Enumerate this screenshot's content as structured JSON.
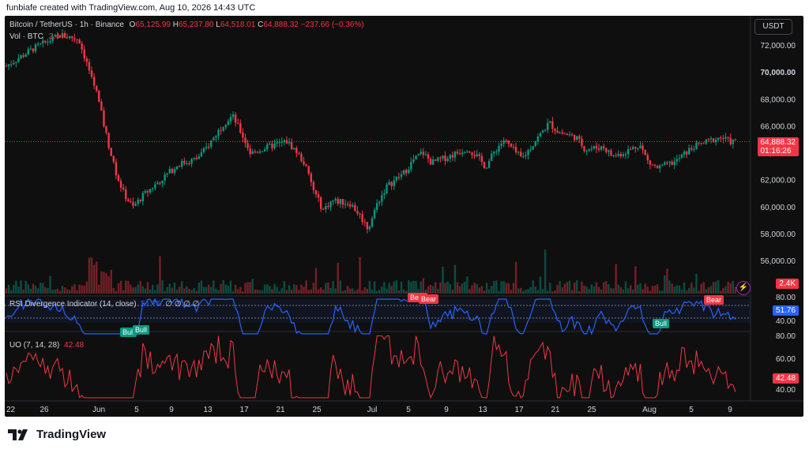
{
  "header": {
    "text": "funbiafe created with TradingView.com, Aug 10, 2026 14:43 UTC"
  },
  "legend": {
    "symbol": "Bitcoin / TetherUS · 1h · Binance",
    "o_label": "O",
    "o": "65,125.99",
    "h_label": "H",
    "h": "65,237.80",
    "l_label": "L",
    "l": "64,518.01",
    "c_label": "C",
    "c": "64,888.32",
    "chg": "−237.66 (−0.36%)",
    "vol_label": "Vol · BTC",
    "vol": "2.4 K"
  },
  "currency_button": "USDT",
  "price_tag": {
    "price": "64,888.32",
    "countdown": "01:16:26"
  },
  "volume_tag": "2.4K",
  "rsi": {
    "label": "RSI Divergence Indicator (14, close)",
    "value": "51.76",
    "nulls": "∅ ∅ ∅ ∅",
    "signals": [
      {
        "type": "Bear",
        "text": "Bear"
      },
      {
        "type": "Bear",
        "text": "Bear"
      },
      {
        "type": "Bear",
        "text": "Bear"
      },
      {
        "type": "Bull",
        "text": "Bull"
      },
      {
        "type": "Bull",
        "text": "Bull"
      },
      {
        "type": "Bull",
        "text": "Bull"
      }
    ]
  },
  "uo": {
    "label": "UO (7, 14, 28)",
    "value": "42.48"
  },
  "footer": {
    "brand": "TradingView"
  },
  "colors": {
    "up": "#089981",
    "down": "#f23645",
    "rsi": "#2962ff",
    "uo": "#f23645",
    "bg": "#0f0f0f"
  },
  "chart_data": {
    "type": "candlestick",
    "price_axis": {
      "ticks": [
        56000,
        58000,
        60000,
        62000,
        64000,
        66000,
        68000,
        70000,
        72000
      ],
      "tick_labels": [
        "56,000.00",
        "58,000.00",
        "60,000.00",
        "62,000.00",
        "64,000.00",
        "66,000.00",
        "68,000.00",
        "70,000.00",
        "72,000.00"
      ],
      "bold_tick": "70,000.00"
    },
    "rsi_axis": {
      "tick_labels": [
        "80.00",
        "40.00"
      ]
    },
    "uo_axis": {
      "tick_labels": [
        "80.00",
        "60.00",
        "40.00"
      ]
    },
    "x_labels": [
      "22",
      "26",
      "Jun",
      "5",
      "9",
      "13",
      "17",
      "21",
      "25",
      "Jul",
      "5",
      "9",
      "13",
      "17",
      "21",
      "25",
      "Aug",
      "5",
      "9"
    ],
    "price_path": [
      [
        "May 22",
        70500
      ],
      [
        "May 25",
        71800
      ],
      [
        "May 28",
        72800
      ],
      [
        "May 30",
        72500
      ],
      [
        "Jun 1",
        68500
      ],
      [
        "Jun 2",
        65500
      ],
      [
        "Jun 3",
        62800
      ],
      [
        "Jun 4",
        61000
      ],
      [
        "Jun 5",
        60000
      ],
      [
        "Jun 6",
        60800
      ],
      [
        "Jun 8",
        62000
      ],
      [
        "Jun 10",
        63200
      ],
      [
        "Jun 12",
        63600
      ],
      [
        "Jun 13",
        64300
      ],
      [
        "Jun 15",
        66200
      ],
      [
        "Jun 16",
        66800
      ],
      [
        "Jun 17",
        65500
      ],
      [
        "Jun 18",
        64000
      ],
      [
        "Jun 20",
        64500
      ],
      [
        "Jun 22",
        64900
      ],
      [
        "Jun 23",
        64200
      ],
      [
        "Jun 24",
        63200
      ],
      [
        "Jun 25",
        61200
      ],
      [
        "Jun 26",
        59800
      ],
      [
        "Jun 27",
        60500
      ],
      [
        "Jun 29",
        60300
      ],
      [
        "Jun 30",
        59500
      ],
      [
        "Jul 1",
        58400
      ],
      [
        "Jul 2",
        60300
      ],
      [
        "Jul 3",
        61500
      ],
      [
        "Jul 5",
        62600
      ],
      [
        "Jul 6",
        63500
      ],
      [
        "Jul 7",
        64100
      ],
      [
        "Jul 8",
        63300
      ],
      [
        "Jul 10",
        63800
      ],
      [
        "Jul 12",
        64400
      ],
      [
        "Jul 13",
        63800
      ],
      [
        "Jul 14",
        63000
      ],
      [
        "Jul 15",
        64200
      ],
      [
        "Jul 16",
        65000
      ],
      [
        "Jul 18",
        63600
      ],
      [
        "Jul 19",
        64500
      ],
      [
        "Jul 21",
        66300
      ],
      [
        "Jul 22",
        65600
      ],
      [
        "Jul 24",
        65200
      ],
      [
        "Jul 25",
        64300
      ],
      [
        "Jul 27",
        64500
      ],
      [
        "Jul 28",
        63800
      ],
      [
        "Jul 29",
        64000
      ],
      [
        "Jul 30",
        64300
      ],
      [
        "Jul 31",
        64700
      ],
      [
        "Aug 1",
        63300
      ],
      [
        "Aug 2",
        62900
      ],
      [
        "Aug 4",
        63400
      ],
      [
        "Aug 5",
        64000
      ],
      [
        "Aug 6",
        64500
      ],
      [
        "Aug 8",
        65000
      ],
      [
        "Aug 9",
        65200
      ],
      [
        "Aug 10",
        64888
      ]
    ]
  }
}
